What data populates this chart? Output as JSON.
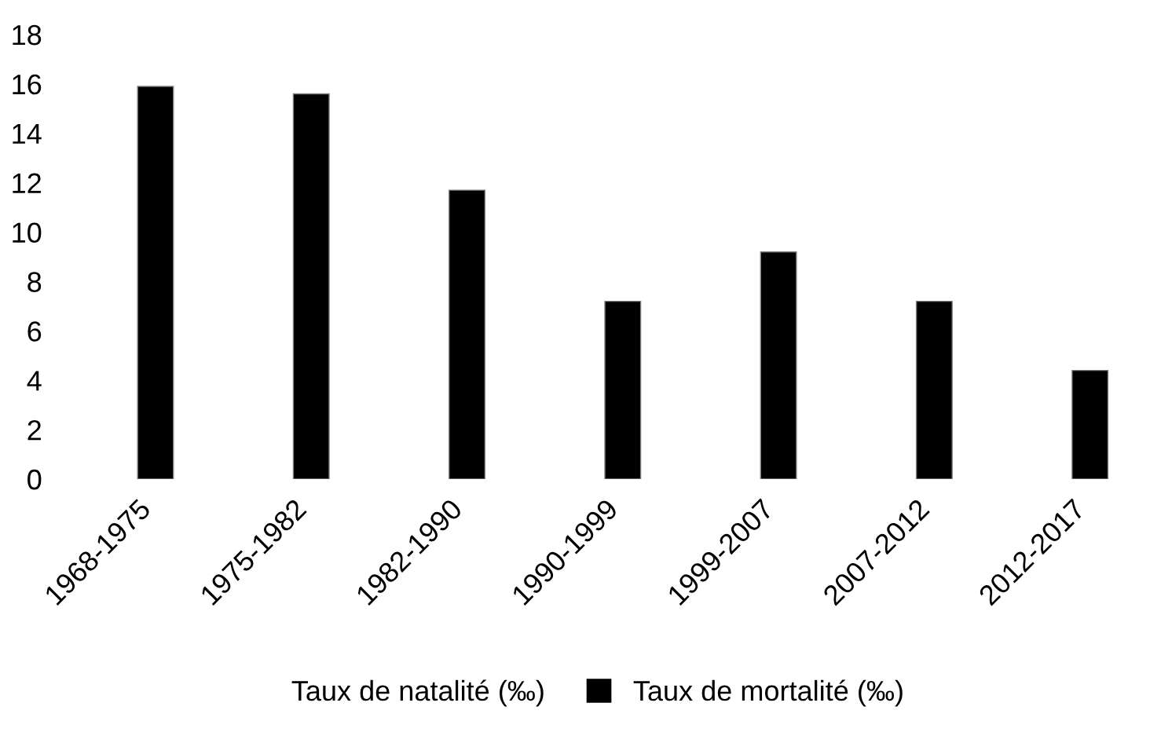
{
  "chart_data": {
    "type": "bar",
    "categories": [
      "1968-1975",
      "1975-1982",
      "1982-1990",
      "1990-1999",
      "1999-2007",
      "2007-2012",
      "2012-2017"
    ],
    "series": [
      {
        "name": "Taux de natalité (‰)",
        "values": [
          null,
          null,
          null,
          null,
          null,
          null,
          null
        ]
      },
      {
        "name": "Taux de mortalité (‰)",
        "color": "#000000",
        "values": [
          15.9,
          15.6,
          11.7,
          7.2,
          9.2,
          7.2,
          4.4
        ]
      }
    ],
    "ylim": [
      0,
      18
    ],
    "yticks": [
      0,
      2,
      4,
      6,
      8,
      10,
      12,
      14,
      16,
      18
    ],
    "grid": false,
    "legend": "bottom"
  }
}
